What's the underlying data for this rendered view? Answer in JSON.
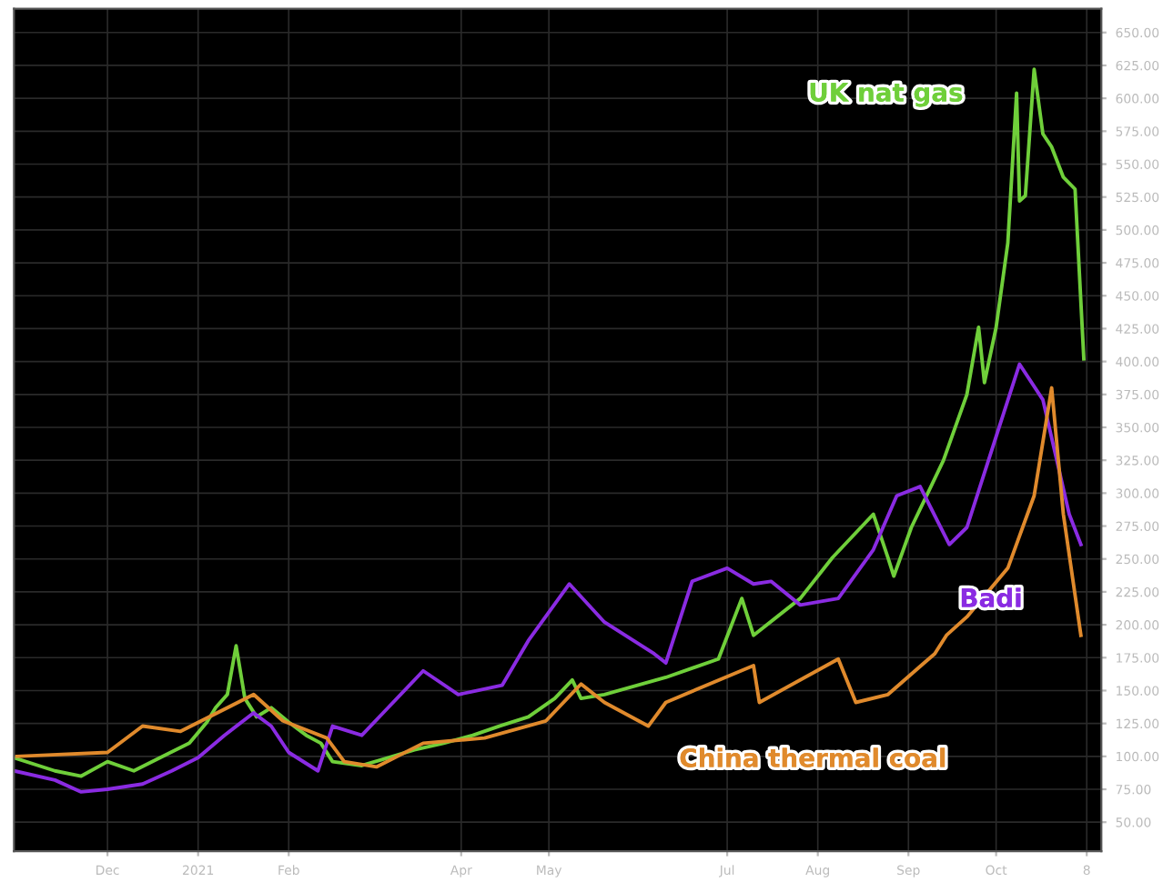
{
  "chart_data": {
    "type": "line",
    "xlim": [
      "2020-10-30",
      "2021-11-06"
    ],
    "xticks": [
      {
        "value": "2020-12-01",
        "label": "Dec"
      },
      {
        "value": "2021-01-01",
        "label": "2021"
      },
      {
        "value": "2021-02-01",
        "label": "Feb"
      },
      {
        "value": "2021-04-01",
        "label": "Apr"
      },
      {
        "value": "2021-05-01",
        "label": "May"
      },
      {
        "value": "2021-07-01",
        "label": "Jul"
      },
      {
        "value": "2021-08-01",
        "label": "Aug"
      },
      {
        "value": "2021-09-01",
        "label": "Sep"
      },
      {
        "value": "2021-10-01",
        "label": "Oct"
      },
      {
        "value": "2021-11-01",
        "label": "8"
      }
    ],
    "ylim": [
      28,
      668
    ],
    "yticks": [
      {
        "value": 50,
        "label": "50.00"
      },
      {
        "value": 75,
        "label": "75.00"
      },
      {
        "value": 100,
        "label": "100.00"
      },
      {
        "value": 125,
        "label": "125.00"
      },
      {
        "value": 150,
        "label": "150.00"
      },
      {
        "value": 175,
        "label": "175.00"
      },
      {
        "value": 200,
        "label": "200.00"
      },
      {
        "value": 225,
        "label": "225.00"
      },
      {
        "value": 250,
        "label": "250.00"
      },
      {
        "value": 275,
        "label": "275.00"
      },
      {
        "value": 300,
        "label": "300.00"
      },
      {
        "value": 325,
        "label": "325.00"
      },
      {
        "value": 350,
        "label": "350.00"
      },
      {
        "value": 375,
        "label": "375.00"
      },
      {
        "value": 400,
        "label": "400.00"
      },
      {
        "value": 425,
        "label": "425.00"
      },
      {
        "value": 450,
        "label": "450.00"
      },
      {
        "value": 475,
        "label": "475.00"
      },
      {
        "value": 500,
        "label": "500.00"
      },
      {
        "value": 525,
        "label": "525.00"
      },
      {
        "value": 550,
        "label": "550.00"
      },
      {
        "value": 575,
        "label": "575.00"
      },
      {
        "value": 600,
        "label": "600.00"
      },
      {
        "value": 625,
        "label": "625.00"
      },
      {
        "value": 650,
        "label": "650.00"
      }
    ],
    "grid": true,
    "series": [
      {
        "name": "UK nat gas",
        "color": "#6fcf3a",
        "x": [
          "2020-10-30",
          "2020-11-13",
          "2020-11-22",
          "2020-12-01",
          "2020-12-10",
          "2020-12-19",
          "2020-12-29",
          "2021-01-04",
          "2021-01-07",
          "2021-01-11",
          "2021-01-14",
          "2021-01-17",
          "2021-01-21",
          "2021-01-26",
          "2021-02-01",
          "2021-02-07",
          "2021-02-12",
          "2021-02-16",
          "2021-02-26",
          "2021-03-07",
          "2021-03-16",
          "2021-03-26",
          "2021-04-05",
          "2021-04-14",
          "2021-04-24",
          "2021-05-03",
          "2021-05-09",
          "2021-05-12",
          "2021-05-20",
          "2021-06-10",
          "2021-06-28",
          "2021-07-06",
          "2021-07-10",
          "2021-07-26",
          "2021-08-06",
          "2021-08-20",
          "2021-08-25",
          "2021-08-27",
          "2021-09-02",
          "2021-09-13",
          "2021-09-21",
          "2021-09-25",
          "2021-09-27",
          "2021-10-01",
          "2021-10-05",
          "2021-10-08",
          "2021-10-09",
          "2021-10-11",
          "2021-10-14",
          "2021-10-17",
          "2021-10-20",
          "2021-10-24",
          "2021-10-28",
          "2021-10-31"
        ],
        "values": [
          99,
          89,
          85,
          96,
          89,
          99,
          110,
          126,
          137,
          147,
          184,
          144,
          130,
          137,
          126,
          116,
          110,
          96,
          93,
          99,
          105,
          110,
          116,
          123,
          130,
          144,
          158,
          144,
          147,
          160,
          174,
          220,
          192,
          220,
          251,
          284,
          251,
          237,
          274,
          325,
          375,
          426,
          384,
          426,
          490,
          604,
          522,
          526,
          622,
          573,
          563,
          540,
          531,
          402
        ]
      },
      {
        "name": "Badi",
        "color": "#8a2be2",
        "x": [
          "2020-10-30",
          "2020-11-13",
          "2020-11-22",
          "2020-12-01",
          "2020-12-13",
          "2020-12-23",
          "2021-01-01",
          "2021-01-10",
          "2021-01-20",
          "2021-01-26",
          "2021-02-01",
          "2021-02-11",
          "2021-02-16",
          "2021-02-26",
          "2021-03-07",
          "2021-03-19",
          "2021-03-31",
          "2021-04-15",
          "2021-04-24",
          "2021-05-08",
          "2021-05-20",
          "2021-06-06",
          "2021-06-10",
          "2021-06-19",
          "2021-07-01",
          "2021-07-10",
          "2021-07-16",
          "2021-07-26",
          "2021-08-08",
          "2021-08-20",
          "2021-08-28",
          "2021-09-05",
          "2021-09-15",
          "2021-09-21",
          "2021-10-01",
          "2021-10-09",
          "2021-10-17",
          "2021-10-26",
          "2021-10-30"
        ],
        "values": [
          89,
          82,
          73,
          75,
          79,
          89,
          99,
          116,
          133,
          123,
          103,
          89,
          123,
          116,
          137,
          165,
          147,
          154,
          188,
          231,
          202,
          178,
          171,
          233,
          243,
          231,
          233,
          215,
          220,
          257,
          298,
          305,
          261,
          274,
          343,
          398,
          371,
          284,
          261
        ]
      },
      {
        "name": "China thermal coal",
        "color": "#e08a2c",
        "x": [
          "2020-10-31",
          "2020-12-01",
          "2020-12-13",
          "2020-12-26",
          "2021-01-20",
          "2021-01-30",
          "2021-02-14",
          "2021-02-20",
          "2021-03-03",
          "2021-03-19",
          "2021-04-09",
          "2021-04-30",
          "2021-05-12",
          "2021-05-20",
          "2021-06-04",
          "2021-06-10",
          "2021-07-10",
          "2021-07-12",
          "2021-08-08",
          "2021-08-14",
          "2021-08-25",
          "2021-09-10",
          "2021-09-14",
          "2021-09-21",
          "2021-10-05",
          "2021-10-14",
          "2021-10-20",
          "2021-10-24",
          "2021-10-30"
        ],
        "values": [
          100,
          103,
          123,
          119,
          147,
          127,
          114,
          96,
          92,
          110,
          114,
          127,
          155,
          141,
          123,
          141,
          169,
          141,
          174,
          141,
          147,
          178,
          192,
          206,
          243,
          298,
          380,
          284,
          192
        ]
      }
    ]
  }
}
